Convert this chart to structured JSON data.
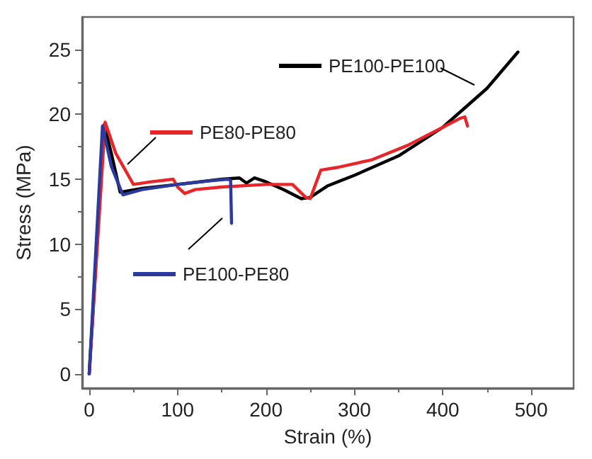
{
  "chart_data": {
    "type": "line",
    "xlabel": "Strain (%)",
    "ylabel": "Stress (MPa)",
    "xlim": [
      -8,
      548
    ],
    "ylim": [
      -1.1,
      27.5
    ],
    "xticks": [
      0,
      100,
      200,
      300,
      400,
      500
    ],
    "yticks": [
      0,
      5,
      10,
      15,
      20,
      25
    ],
    "grid": false,
    "legend": "top",
    "marker": "none",
    "line_style": "solid",
    "series": [
      {
        "name": "PE100-PE100",
        "color": "#000000",
        "x": [
          0,
          17,
          25,
          35,
          60,
          100,
          150,
          170,
          178,
          187,
          200,
          220,
          240,
          250,
          270,
          300,
          350,
          400,
          450,
          485
        ],
        "values": [
          0,
          19.2,
          17,
          14,
          14.3,
          14.6,
          15,
          15.1,
          14.7,
          15.1,
          14.8,
          14.2,
          13.5,
          13.6,
          14.5,
          15.3,
          16.8,
          19,
          22,
          24.8
        ]
      },
      {
        "name": "PE80-PE80",
        "color": "#e8262a",
        "x": [
          0,
          18,
          30,
          50,
          70,
          95,
          100,
          108,
          120,
          150,
          200,
          230,
          245,
          250,
          262,
          280,
          320,
          360,
          400,
          420,
          425,
          428
        ],
        "values": [
          0,
          19.4,
          17,
          14.6,
          14.8,
          15,
          14.4,
          13.9,
          14.2,
          14.4,
          14.6,
          14.6,
          13.6,
          13.5,
          15.7,
          15.9,
          16.5,
          17.6,
          19,
          19.7,
          19.8,
          19.1
        ]
      },
      {
        "name": "PE100-PE80",
        "color": "#2b3a9e",
        "x": [
          0,
          15,
          25,
          38,
          60,
          100,
          140,
          157,
          160,
          161
        ],
        "values": [
          0,
          19.1,
          16,
          13.8,
          14.2,
          14.6,
          14.9,
          15,
          14.9,
          11.6
        ]
      }
    ]
  }
}
